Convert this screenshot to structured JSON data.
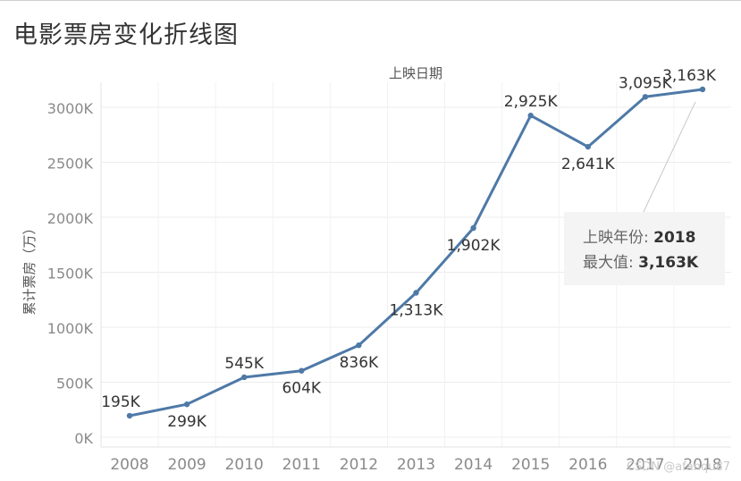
{
  "page": {
    "title": "电影票房变化折线图",
    "watermark": "CSDN @afanqu87"
  },
  "tooltip": {
    "line1_label": "上映年份:",
    "line1_value": "2018",
    "line2_label": "最大值:",
    "line2_value": "3,163K"
  },
  "chart_data": {
    "type": "line",
    "title": "",
    "x_axis_title": "上映日期",
    "ylabel": "累计票房（万）",
    "x": [
      "2008",
      "2009",
      "2010",
      "2011",
      "2012",
      "2013",
      "2014",
      "2015",
      "2016",
      "2017",
      "2018"
    ],
    "series": [
      {
        "values": [
          195,
          299,
          545,
          604,
          836,
          1313,
          1902,
          2925,
          2641,
          3095,
          3163
        ],
        "labels": [
          "195K",
          "299K",
          "545K",
          "604K",
          "836K",
          "1,313K",
          "1,902K",
          "2,925K",
          "2,641K",
          "3,095K",
          "3,163K"
        ]
      }
    ],
    "y_ticks": [
      0,
      500,
      1000,
      1500,
      2000,
      2500,
      3000
    ],
    "y_tick_labels": [
      "0K",
      "500K",
      "1000K",
      "1500K",
      "2000K",
      "2500K",
      "3000K"
    ],
    "ylim": [
      -80,
      3300
    ],
    "grid": true,
    "line_color": "#4e79a7",
    "highlight_point": "2018"
  }
}
